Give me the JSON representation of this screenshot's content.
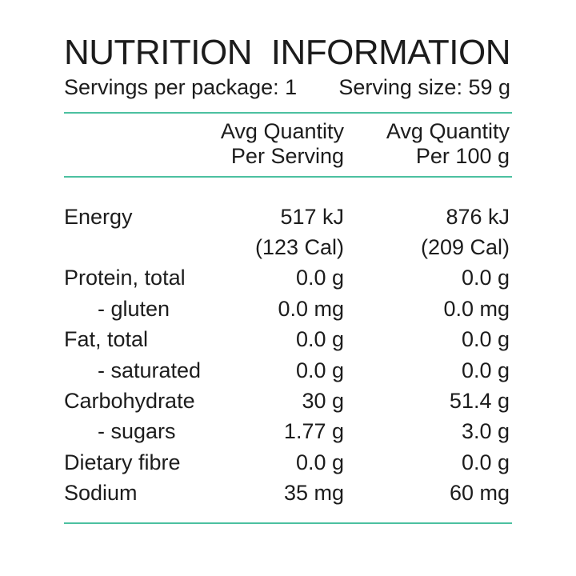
{
  "colors": {
    "accent_line": "#4cc0a0",
    "text": "#1c1c1c",
    "background": "#ffffff"
  },
  "header": {
    "title": "NUTRITION INFORMATION",
    "servings_per_package": "Servings per package: 1",
    "serving_size": "Serving size: 59 g"
  },
  "table": {
    "column_headers": {
      "per_serving": {
        "line1": "Avg Quantity",
        "line2": "Per Serving"
      },
      "per_100g": {
        "line1": "Avg Quantity",
        "line2": "Per 100 g"
      }
    },
    "rows": [
      {
        "label": "Energy",
        "per_serving": "517 kJ",
        "per_100g": "876 kJ",
        "indent": false
      },
      {
        "label": "",
        "per_serving": "(123 Cal)",
        "per_100g": "(209 Cal)",
        "indent": false
      },
      {
        "label": "Protein, total",
        "per_serving": "0.0 g",
        "per_100g": "0.0 g",
        "indent": false
      },
      {
        "label": "- gluten",
        "per_serving": "0.0 mg",
        "per_100g": "0.0 mg",
        "indent": true
      },
      {
        "label": "Fat, total",
        "per_serving": "0.0 g",
        "per_100g": "0.0 g",
        "indent": false
      },
      {
        "label": "- saturated",
        "per_serving": "0.0 g",
        "per_100g": "0.0 g",
        "indent": true
      },
      {
        "label": "Carbohydrate",
        "per_serving": "30 g",
        "per_100g": "51.4 g",
        "indent": false
      },
      {
        "label": "- sugars",
        "per_serving": "1.77 g",
        "per_100g": "3.0 g",
        "indent": true
      },
      {
        "label": "Dietary fibre",
        "per_serving": "0.0 g",
        "per_100g": "0.0 g",
        "indent": false
      },
      {
        "label": "Sodium",
        "per_serving": "35 mg",
        "per_100g": "60 mg",
        "indent": false
      }
    ]
  }
}
